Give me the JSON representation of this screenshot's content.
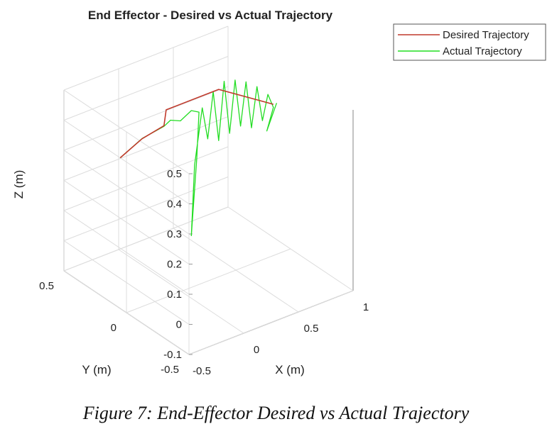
{
  "caption": "Figure 7: End-Effector Desired vs Actual Trajectory",
  "chart_data": {
    "type": "line",
    "projection": "3d",
    "title": "End Effector - Desired vs Actual Trajectory",
    "xlabel": "X (m)",
    "ylabel": "Y (m)",
    "zlabel": "Z (m)",
    "xlim": [
      -0.5,
      1
    ],
    "ylim": [
      -0.5,
      0.5
    ],
    "zlim": [
      -0.1,
      0.5
    ],
    "x_ticks": [
      "-0.5",
      "0",
      "0.5",
      "1"
    ],
    "y_ticks": [
      "-0.5",
      "0",
      "0.5"
    ],
    "z_ticks": [
      "-0.1",
      "0",
      "0.1",
      "0.2",
      "0.3",
      "0.4",
      "0.5"
    ],
    "grid": true,
    "legend_position": "top-right",
    "series": [
      {
        "name": "Desired Trajectory",
        "color": "#c0392b",
        "points": [
          [
            -0.5,
            0.05,
            0.4
          ],
          [
            -0.3,
            0.05,
            0.435
          ],
          [
            -0.1,
            0.05,
            0.45
          ],
          [
            -0.08,
            0.05,
            0.5
          ],
          [
            0.4,
            0.05,
            0.5
          ],
          [
            0.9,
            0.05,
            0.38
          ]
        ]
      },
      {
        "name": "Actual Trajectory",
        "color": "#22dd22",
        "points": [
          [
            -0.5,
            0.05,
            0.4
          ],
          [
            -0.3,
            0.05,
            0.436
          ],
          [
            -0.1,
            0.05,
            0.448
          ],
          [
            -0.04,
            0.05,
            0.46
          ],
          [
            0.05,
            0.05,
            0.445
          ],
          [
            0.15,
            0.05,
            0.465
          ],
          [
            0.22,
            0.05,
            0.45
          ],
          [
            0.2,
            0.05,
            0.3
          ],
          [
            0.15,
            0.05,
            0.05
          ],
          [
            0.18,
            0.05,
            0.28
          ],
          [
            0.25,
            0.05,
            0.46
          ],
          [
            0.3,
            0.05,
            0.35
          ],
          [
            0.35,
            0.05,
            0.5
          ],
          [
            0.4,
            0.05,
            0.33
          ],
          [
            0.45,
            0.05,
            0.52
          ],
          [
            0.5,
            0.05,
            0.34
          ],
          [
            0.55,
            0.05,
            0.51
          ],
          [
            0.6,
            0.05,
            0.35
          ],
          [
            0.65,
            0.05,
            0.49
          ],
          [
            0.7,
            0.05,
            0.33
          ],
          [
            0.75,
            0.05,
            0.46
          ],
          [
            0.8,
            0.05,
            0.34
          ],
          [
            0.85,
            0.05,
            0.42
          ],
          [
            0.9,
            0.05,
            0.37
          ],
          [
            0.84,
            0.05,
            0.3
          ],
          [
            0.93,
            0.05,
            0.38
          ]
        ]
      }
    ]
  }
}
